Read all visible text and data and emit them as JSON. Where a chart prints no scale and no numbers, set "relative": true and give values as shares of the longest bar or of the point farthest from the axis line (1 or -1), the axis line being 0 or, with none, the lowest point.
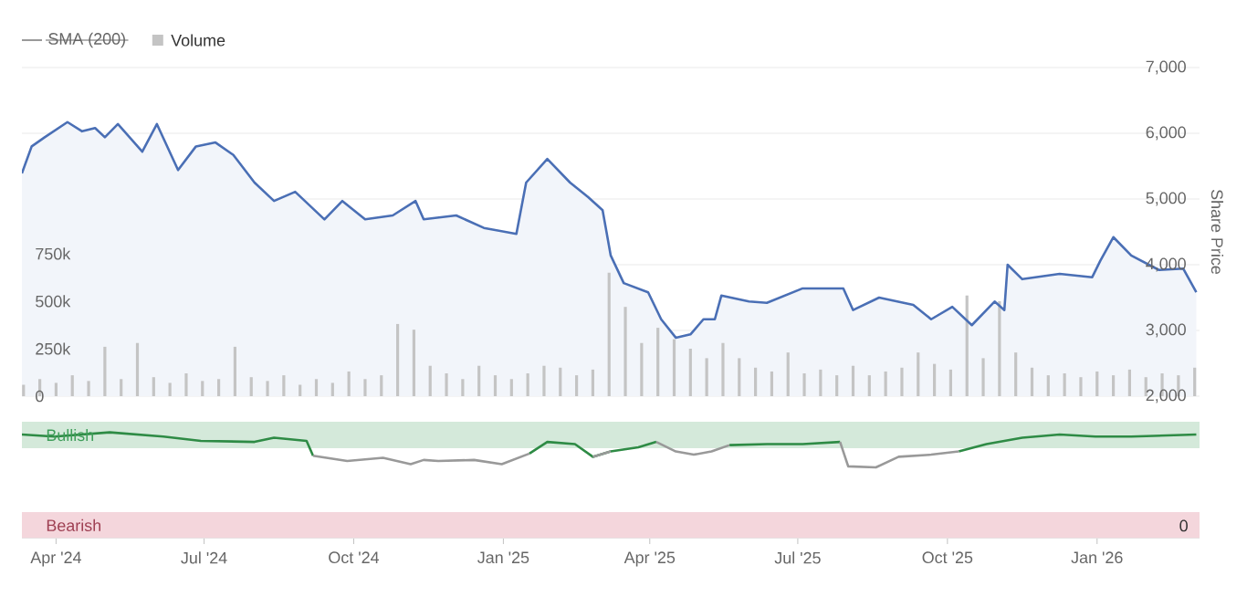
{
  "chart_data": [
    {
      "type": "bar",
      "xlim": [
        "2024-03-11",
        "2026-03-05"
      ],
      "ylim": [
        0,
        1730000
      ],
      "yticks": [
        {
          "value": 0,
          "label": "0"
        },
        {
          "value": 250000,
          "label": "250k"
        },
        {
          "value": 500000,
          "label": "500k"
        },
        {
          "value": 750000,
          "label": "750k"
        }
      ],
      "y2lim": [
        2000,
        7000
      ],
      "y2ticks": [
        {
          "value": 2000,
          "label": "2,000"
        },
        {
          "value": 3000,
          "label": "3,000"
        },
        {
          "value": 4000,
          "label": "4,000"
        },
        {
          "value": 5000,
          "label": "5,000"
        },
        {
          "value": 6000,
          "label": "6,000"
        },
        {
          "value": 7000,
          "label": "7,000"
        }
      ],
      "y2label": "Share Price",
      "grid": "y",
      "legend": "top left",
      "tick_labels": "y",
      "series": [
        {
          "name": "SMA (200)",
          "type": "line",
          "color": "#999999"
        },
        {
          "name": "Volume",
          "type": "bar",
          "color": "#c4c4c4",
          "x": [
            "2024-03-12",
            "2024-03-22",
            "2024-04-01",
            "2024-04-11",
            "2024-04-21",
            "2024-05-01",
            "2024-05-11",
            "2024-05-21",
            "2024-05-31",
            "2024-06-10",
            "2024-06-20",
            "2024-06-30",
            "2024-07-10",
            "2024-07-20",
            "2024-07-30",
            "2024-08-09",
            "2024-08-19",
            "2024-08-29",
            "2024-09-08",
            "2024-09-18",
            "2024-09-28",
            "2024-10-08",
            "2024-10-18",
            "2024-10-28",
            "2024-11-07",
            "2024-11-17",
            "2024-11-27",
            "2024-12-07",
            "2024-12-17",
            "2024-12-27",
            "2025-01-06",
            "2025-01-16",
            "2025-01-26",
            "2025-02-05",
            "2025-02-15",
            "2025-02-25",
            "2025-03-07",
            "2025-03-17",
            "2025-03-27",
            "2025-04-06",
            "2025-04-16",
            "2025-04-26",
            "2025-05-06",
            "2025-05-16",
            "2025-05-26",
            "2025-06-05",
            "2025-06-15",
            "2025-06-25",
            "2025-07-05",
            "2025-07-15",
            "2025-07-25",
            "2025-08-04",
            "2025-08-14",
            "2025-08-24",
            "2025-09-03",
            "2025-09-13",
            "2025-09-23",
            "2025-10-03",
            "2025-10-13",
            "2025-10-23",
            "2025-11-02",
            "2025-11-12",
            "2025-11-22",
            "2025-12-02",
            "2025-12-12",
            "2025-12-22",
            "2026-01-01",
            "2026-01-11",
            "2026-01-21",
            "2026-01-31",
            "2026-02-10",
            "2026-02-20",
            "2026-03-02"
          ],
          "values": [
            60000,
            90000,
            70000,
            110000,
            80000,
            260000,
            90000,
            280000,
            100000,
            70000,
            120000,
            80000,
            90000,
            260000,
            100000,
            80000,
            110000,
            60000,
            90000,
            70000,
            130000,
            90000,
            110000,
            380000,
            350000,
            160000,
            120000,
            90000,
            160000,
            110000,
            90000,
            120000,
            160000,
            150000,
            110000,
            140000,
            650000,
            470000,
            280000,
            360000,
            300000,
            250000,
            200000,
            280000,
            200000,
            150000,
            130000,
            230000,
            120000,
            140000,
            110000,
            160000,
            110000,
            130000,
            150000,
            230000,
            170000,
            140000,
            530000,
            200000,
            500000,
            230000,
            150000,
            110000,
            120000,
            100000,
            130000,
            110000,
            140000,
            100000,
            120000,
            110000,
            150000
          ]
        },
        {
          "type": "area",
          "axis": "y2",
          "color": "#4a6fb5",
          "x": [
            "2024-03-11",
            "2024-03-17",
            "2024-03-25",
            "2024-04-08",
            "2024-04-17",
            "2024-04-25",
            "2024-05-01",
            "2024-05-09",
            "2024-05-24",
            "2024-06-02",
            "2024-06-15",
            "2024-06-26",
            "2024-07-08",
            "2024-07-19",
            "2024-08-01",
            "2024-08-13",
            "2024-08-26",
            "2024-09-13",
            "2024-09-24",
            "2024-10-08",
            "2024-10-25",
            "2024-11-08",
            "2024-11-13",
            "2024-12-03",
            "2024-12-20",
            "2025-01-09",
            "2025-01-15",
            "2025-01-28",
            "2025-02-11",
            "2025-02-22",
            "2025-03-03",
            "2025-03-08",
            "2025-03-16",
            "2025-03-31",
            "2025-04-08",
            "2025-04-17",
            "2025-04-26",
            "2025-05-04",
            "2025-05-11",
            "2025-05-15",
            "2025-06-01",
            "2025-06-12",
            "2025-07-04",
            "2025-07-29",
            "2025-08-04",
            "2025-08-20",
            "2025-09-10",
            "2025-09-21",
            "2025-10-04",
            "2025-10-16",
            "2025-10-30",
            "2025-11-05",
            "2025-11-07",
            "2025-11-16",
            "2025-12-09",
            "2025-12-29",
            "2026-01-03",
            "2026-01-11",
            "2026-01-22",
            "2026-02-08",
            "2026-02-23",
            "2026-03-03"
          ],
          "values": [
            5390,
            5800,
            5940,
            6170,
            6030,
            6080,
            5940,
            6140,
            5720,
            6140,
            5440,
            5800,
            5860,
            5670,
            5250,
            4970,
            5110,
            4690,
            4970,
            4690,
            4750,
            4970,
            4690,
            4750,
            4560,
            4470,
            5250,
            5610,
            5250,
            5030,
            4830,
            4140,
            3720,
            3580,
            3170,
            2890,
            2940,
            3170,
            3170,
            3530,
            3440,
            3420,
            3640,
            3640,
            3310,
            3500,
            3390,
            3170,
            3360,
            3080,
            3440,
            3310,
            4000,
            3780,
            3860,
            3810,
            4060,
            4420,
            4140,
            3920,
            3940,
            3580
          ]
        }
      ]
    },
    {
      "type": "line",
      "xlim": [
        "2024-03-11",
        "2026-03-05"
      ],
      "relative": true,
      "xticks": [
        {
          "value": "2024-04-01",
          "label": "Apr '24"
        },
        {
          "value": "2024-07-01",
          "label": "Jul '24"
        },
        {
          "value": "2024-10-01",
          "label": "Oct '24"
        },
        {
          "value": "2025-01-01",
          "label": "Jan '25"
        },
        {
          "value": "2025-04-01",
          "label": "Apr '25"
        },
        {
          "value": "2025-07-01",
          "label": "Jul '25"
        },
        {
          "value": "2025-10-01",
          "label": "Oct '25"
        },
        {
          "value": "2026-01-01",
          "label": "Jan '26"
        }
      ],
      "bands": [
        {
          "axis": "y",
          "from": 0.85,
          "to": 1.1,
          "label": "Bullish",
          "color": "#d4e9da"
        },
        {
          "axis": "y",
          "from": 0,
          "to": 0.25,
          "label": "Bearish",
          "color": "#f4d6dc"
        }
      ],
      "annotations": [
        "0"
      ],
      "series": [
        {
          "color": "#2e8b45",
          "x": [
            "2024-03-11",
            "2024-03-31",
            "2024-05-04",
            "2024-06-06",
            "2024-06-29",
            "2024-08-01",
            "2024-08-13",
            "2024-09-02",
            "2024-09-06",
            "2024-09-27",
            "2024-10-19",
            "2024-11-05",
            "2024-11-13",
            "2024-11-22",
            "2024-12-14",
            "2024-12-31",
            "2025-01-17",
            "2025-01-28",
            "2025-02-14",
            "2025-02-25",
            "2025-03-08",
            "2025-03-25",
            "2025-04-05",
            "2025-04-17",
            "2025-04-28",
            "2025-05-09",
            "2025-05-20",
            "2025-06-12",
            "2025-07-04",
            "2025-07-27",
            "2025-08-01",
            "2025-08-18",
            "2025-09-01",
            "2025-09-21",
            "2025-10-08",
            "2025-10-25",
            "2025-11-16",
            "2025-12-09",
            "2025-12-31",
            "2026-01-22",
            "2026-03-03"
          ],
          "values": [
            0.98,
            0.96,
            1,
            0.96,
            0.92,
            0.91,
            0.95,
            0.92,
            0.78,
            null,
            null,
            null,
            null,
            null,
            null,
            null,
            0.8,
            0.91,
            0.89,
            0.77,
            0.82,
            0.86,
            0.91,
            null,
            null,
            null,
            0.88,
            0.89,
            0.89,
            0.91,
            null,
            null,
            null,
            null,
            0.82,
            0.89,
            0.95,
            0.98,
            0.96,
            0.96,
            0.98
          ]
        },
        {
          "color": "#999999",
          "x": [
            "2024-09-06",
            "2024-09-27",
            "2024-10-19",
            "2024-11-05",
            "2024-11-13",
            "2024-11-22",
            "2024-12-14",
            "2024-12-31",
            "2025-01-17",
            "2025-01-28",
            "2025-02-14",
            "2025-02-25",
            "2025-03-08",
            "2025-03-25",
            "2025-04-05",
            "2025-04-17",
            "2025-04-28",
            "2025-05-09",
            "2025-05-20",
            "2025-06-12",
            "2025-07-04",
            "2025-07-27",
            "2025-08-01",
            "2025-08-18",
            "2025-09-01",
            "2025-09-21",
            "2025-10-08"
          ],
          "values": [
            0.78,
            0.73,
            0.76,
            0.7,
            0.74,
            0.73,
            0.74,
            0.7,
            0.8,
            null,
            null,
            0.77,
            0.82,
            null,
            0.91,
            0.82,
            0.79,
            0.82,
            0.88,
            null,
            null,
            0.91,
            0.68,
            0.67,
            0.77,
            0.79,
            0.82
          ]
        }
      ]
    }
  ]
}
